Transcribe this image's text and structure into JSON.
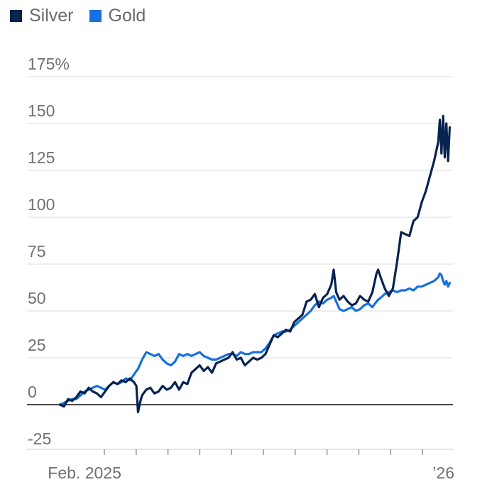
{
  "chart_data": {
    "type": "line",
    "legend_placement": "top-left",
    "series": [
      {
        "name": "Silver",
        "color": "#07234f",
        "points": [
          [
            0.0,
            0
          ],
          [
            0.5,
            -1
          ],
          [
            1.0,
            3
          ],
          [
            1.5,
            2
          ],
          [
            2.0,
            4
          ],
          [
            2.5,
            7
          ],
          [
            3.0,
            6
          ],
          [
            3.5,
            9
          ],
          [
            4.0,
            7
          ],
          [
            4.5,
            6
          ],
          [
            5.0,
            4
          ],
          [
            5.5,
            7
          ],
          [
            6.0,
            10
          ],
          [
            6.5,
            12
          ],
          [
            7.0,
            11
          ],
          [
            7.5,
            13
          ],
          [
            8.0,
            12
          ],
          [
            8.5,
            14
          ],
          [
            9.0,
            12
          ],
          [
            9.3,
            10
          ],
          [
            9.5,
            -4
          ],
          [
            9.8,
            2
          ],
          [
            10.0,
            5
          ],
          [
            10.5,
            8
          ],
          [
            11.0,
            9
          ],
          [
            11.5,
            6
          ],
          [
            12.0,
            7
          ],
          [
            12.5,
            10
          ],
          [
            13.0,
            8
          ],
          [
            13.5,
            9
          ],
          [
            14.0,
            12
          ],
          [
            14.5,
            8
          ],
          [
            15.0,
            12
          ],
          [
            15.5,
            11
          ],
          [
            16.0,
            17
          ],
          [
            16.5,
            19
          ],
          [
            17.0,
            21
          ],
          [
            17.5,
            18
          ],
          [
            18.0,
            20
          ],
          [
            18.5,
            17
          ],
          [
            19.0,
            22
          ],
          [
            19.5,
            23
          ],
          [
            20.0,
            24
          ],
          [
            20.5,
            25
          ],
          [
            21.0,
            28
          ],
          [
            21.5,
            24
          ],
          [
            22.0,
            25
          ],
          [
            22.5,
            21
          ],
          [
            23.0,
            23
          ],
          [
            23.5,
            25
          ],
          [
            24.0,
            24
          ],
          [
            24.5,
            25
          ],
          [
            25.0,
            27
          ],
          [
            25.5,
            32
          ],
          [
            26.0,
            37
          ],
          [
            26.5,
            36
          ],
          [
            27.0,
            38
          ],
          [
            27.5,
            40
          ],
          [
            28.0,
            39
          ],
          [
            28.5,
            44
          ],
          [
            29.0,
            46
          ],
          [
            29.5,
            48
          ],
          [
            30.0,
            55
          ],
          [
            30.5,
            56
          ],
          [
            31.0,
            59
          ],
          [
            31.5,
            52
          ],
          [
            32.0,
            57
          ],
          [
            32.5,
            59
          ],
          [
            33.0,
            64
          ],
          [
            33.3,
            72
          ],
          [
            33.6,
            60
          ],
          [
            34.0,
            56
          ],
          [
            34.5,
            58
          ],
          [
            35.0,
            55
          ],
          [
            35.5,
            53
          ],
          [
            36.0,
            54
          ],
          [
            36.5,
            58
          ],
          [
            37.0,
            56
          ],
          [
            37.5,
            55
          ],
          [
            38.0,
            60
          ],
          [
            38.5,
            70
          ],
          [
            38.7,
            72
          ],
          [
            39.0,
            68
          ],
          [
            39.5,
            62
          ],
          [
            40.0,
            58
          ],
          [
            40.5,
            62
          ],
          [
            41.0,
            76
          ],
          [
            41.5,
            92
          ],
          [
            42.0,
            91
          ],
          [
            42.5,
            90
          ],
          [
            43.0,
            98
          ],
          [
            43.5,
            100
          ],
          [
            44.0,
            108
          ],
          [
            44.5,
            114
          ],
          [
            45.0,
            122
          ],
          [
            45.5,
            130
          ],
          [
            46.0,
            140
          ],
          [
            46.2,
            152
          ],
          [
            46.4,
            134
          ],
          [
            46.6,
            154
          ],
          [
            46.8,
            132
          ],
          [
            47.0,
            150
          ],
          [
            47.2,
            130
          ],
          [
            47.4,
            148
          ]
        ]
      },
      {
        "name": "Gold",
        "color": "#1670e0",
        "points": [
          [
            0.0,
            0
          ],
          [
            0.5,
            1
          ],
          [
            1.0,
            2
          ],
          [
            1.5,
            3
          ],
          [
            2.0,
            3
          ],
          [
            2.5,
            5
          ],
          [
            3.0,
            7
          ],
          [
            3.5,
            8
          ],
          [
            4.0,
            9
          ],
          [
            4.5,
            10
          ],
          [
            5.0,
            9
          ],
          [
            5.5,
            8
          ],
          [
            6.0,
            10
          ],
          [
            6.5,
            12
          ],
          [
            7.0,
            11
          ],
          [
            7.5,
            12
          ],
          [
            8.0,
            14
          ],
          [
            8.5,
            13
          ],
          [
            9.0,
            16
          ],
          [
            9.3,
            18
          ],
          [
            9.5,
            19
          ],
          [
            10.0,
            24
          ],
          [
            10.5,
            28
          ],
          [
            11.0,
            27
          ],
          [
            11.5,
            26
          ],
          [
            12.0,
            27
          ],
          [
            12.5,
            24
          ],
          [
            13.0,
            22
          ],
          [
            13.5,
            21
          ],
          [
            14.0,
            23
          ],
          [
            14.5,
            27
          ],
          [
            15.0,
            26
          ],
          [
            15.5,
            27
          ],
          [
            16.0,
            26
          ],
          [
            16.5,
            27
          ],
          [
            17.0,
            28
          ],
          [
            17.5,
            26
          ],
          [
            18.0,
            25
          ],
          [
            18.5,
            24
          ],
          [
            19.0,
            24
          ],
          [
            19.5,
            25
          ],
          [
            20.0,
            26
          ],
          [
            20.5,
            27
          ],
          [
            21.0,
            27
          ],
          [
            21.5,
            26
          ],
          [
            22.0,
            28
          ],
          [
            22.5,
            27
          ],
          [
            23.0,
            27
          ],
          [
            23.5,
            28
          ],
          [
            24.0,
            28
          ],
          [
            24.5,
            28
          ],
          [
            25.0,
            30
          ],
          [
            25.5,
            33
          ],
          [
            26.0,
            37
          ],
          [
            26.5,
            38
          ],
          [
            27.0,
            39
          ],
          [
            27.5,
            39
          ],
          [
            28.0,
            40
          ],
          [
            28.5,
            42
          ],
          [
            29.0,
            44
          ],
          [
            29.5,
            46
          ],
          [
            30.0,
            48
          ],
          [
            30.5,
            50
          ],
          [
            31.0,
            53
          ],
          [
            31.5,
            55
          ],
          [
            32.0,
            54
          ],
          [
            32.5,
            56
          ],
          [
            33.0,
            57
          ],
          [
            33.3,
            58
          ],
          [
            33.6,
            55
          ],
          [
            34.0,
            51
          ],
          [
            34.5,
            50
          ],
          [
            35.0,
            51
          ],
          [
            35.5,
            52
          ],
          [
            36.0,
            50
          ],
          [
            36.5,
            51
          ],
          [
            37.0,
            53
          ],
          [
            37.5,
            54
          ],
          [
            38.0,
            52
          ],
          [
            38.5,
            55
          ],
          [
            38.7,
            56
          ],
          [
            39.0,
            57
          ],
          [
            39.5,
            59
          ],
          [
            40.0,
            60
          ],
          [
            40.5,
            61
          ],
          [
            41.0,
            60
          ],
          [
            41.5,
            61
          ],
          [
            42.0,
            61
          ],
          [
            42.5,
            62
          ],
          [
            43.0,
            61
          ],
          [
            43.5,
            63
          ],
          [
            44.0,
            63
          ],
          [
            44.5,
            64
          ],
          [
            45.0,
            65
          ],
          [
            45.5,
            66
          ],
          [
            46.0,
            68
          ],
          [
            46.2,
            70
          ],
          [
            46.4,
            69
          ],
          [
            46.6,
            66
          ],
          [
            46.8,
            64
          ],
          [
            47.0,
            66
          ],
          [
            47.2,
            63
          ],
          [
            47.4,
            65
          ]
        ]
      }
    ],
    "y_ticks": [
      -25,
      0,
      25,
      50,
      75,
      100,
      125,
      150,
      175
    ],
    "y_tick_labels": [
      "-25",
      "0",
      "25",
      "50",
      "75",
      "100",
      "125",
      "150",
      "175%"
    ],
    "ylim": [
      -25,
      175
    ],
    "x_tick_labels": [
      {
        "week": 3,
        "label": "Feb. 2025"
      },
      {
        "week": 47.4,
        "label": "’26"
      }
    ],
    "xlim": [
      -4.0,
      47.8
    ],
    "grid": true
  }
}
